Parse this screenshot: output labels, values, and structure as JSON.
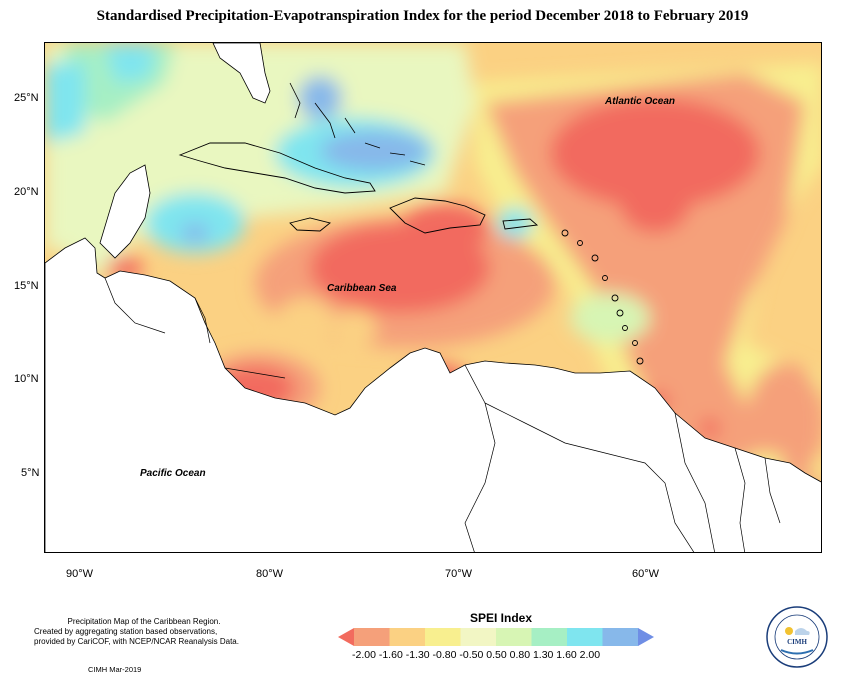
{
  "title": "Standardised Precipitation-Evapotranspiration Index for the period December 2018 to February 2019",
  "map": {
    "lat_labels": [
      "25°N",
      "20°N",
      "15°N",
      "10°N",
      "5°N"
    ],
    "lon_labels": [
      "90°W",
      "80°W",
      "70°W",
      "60°W"
    ],
    "region_labels": {
      "atlantic": "Atlantic Ocean",
      "caribbean": "Caribbean Sea",
      "pacific": "Pacific Ocean"
    }
  },
  "legend": {
    "title": "SPEI Index",
    "labels": "-2.00 -1.60 -1.30 -0.80 -0.50  0.50  0.80  1.30  1.60  2.00",
    "colors": [
      "#f26b5e",
      "#f5a07a",
      "#fbd183",
      "#f8ef8f",
      "#f2f6c4",
      "#d7f5b4",
      "#a6efc4",
      "#7fe5ef",
      "#87b8ea",
      "#6f8ee5"
    ]
  },
  "footer": {
    "line1": "Precipitation Map of the Caribbean Region.",
    "line2": "Created by aggregating station based observations,",
    "line3": "provided by CariCOF, with NCEP/NCAR Reanalysis Data.",
    "credit": "CIMH Mar-2019"
  },
  "logo": {
    "text": "CIMH"
  }
}
